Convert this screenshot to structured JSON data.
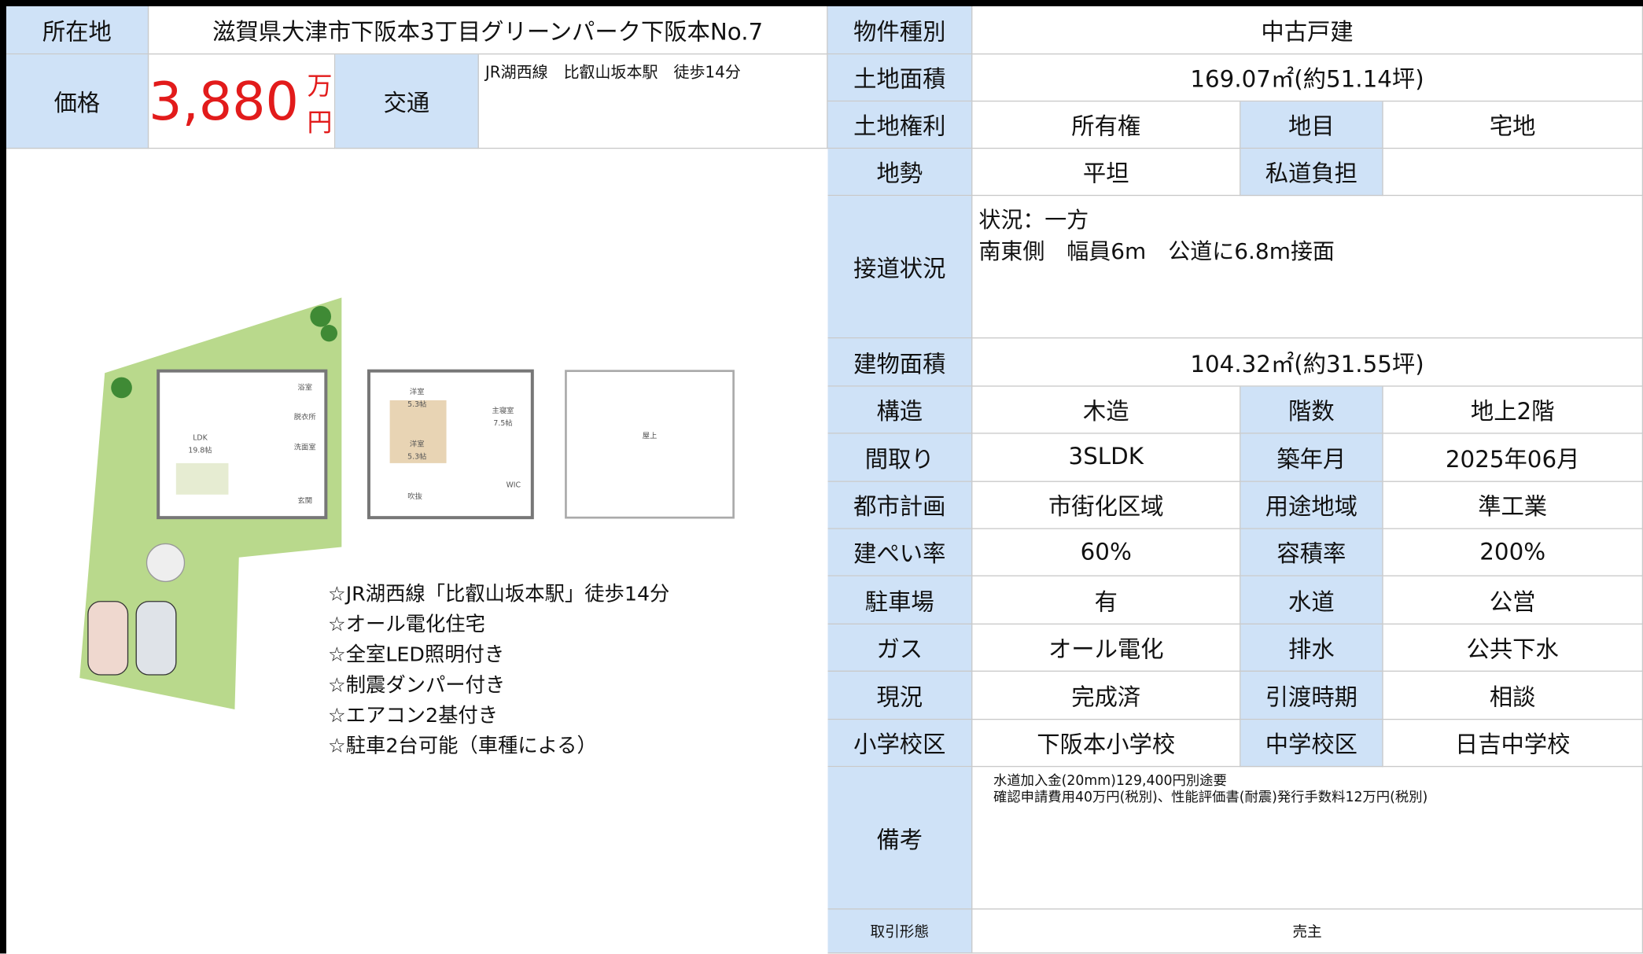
{
  "header": {
    "location_label": "所在地",
    "location": "滋賀県大津市下阪本3丁目グリーンパーク下阪本No.7",
    "price_label": "価格",
    "price": "3,880",
    "price_unit": "万円",
    "access_label": "交通",
    "access": "JR湖西線　比叡山坂本駅　徒歩14分"
  },
  "floor_plan": {
    "labels": [
      "浴室",
      "脱衣所",
      "LDK",
      "19.8帖",
      "洗面室",
      "玄関",
      "洋室",
      "5.3帖",
      "洋室",
      "5.3帖",
      "主寝室",
      "7.5帖",
      "WIC",
      "吹抜",
      "屋上"
    ]
  },
  "features": [
    "☆JR湖西線「比叡山坂本駅」徒歩14分",
    "☆オール電化住宅",
    "☆全室LED照明付き",
    "☆制震ダンパー付き",
    "☆エアコン2基付き",
    "☆駐車2台可能（車種による）"
  ],
  "table": {
    "rows": [
      [
        "物件種別",
        "中古戸建"
      ],
      [
        "土地面積",
        "169.07㎡(約51.14坪)"
      ],
      [
        "土地権利",
        "所有権",
        "地目",
        "宅地"
      ],
      [
        "地勢",
        "平坦",
        "私道負担"
      ],
      [
        "接道状況",
        [
          "状況：一方",
          "南東側　幅員6m　公道に6.8m接面"
        ]
      ],
      [
        "建物面積",
        "104.32㎡(約31.55坪)"
      ],
      [
        "構造",
        "木造",
        "階数",
        "地上2階"
      ],
      [
        "間取り",
        "3SLDK",
        "築年月",
        "2025年06月"
      ],
      [
        "都市計画",
        "市街化区域",
        "用途地域",
        "準工業"
      ],
      [
        "建ぺい率",
        "60%",
        "容積率",
        "200%"
      ],
      [
        "駐車場",
        "有",
        "水道",
        "公営"
      ],
      [
        "ガス",
        "オール電化",
        "排水",
        "公共下水"
      ],
      [
        "現況",
        "完成済",
        "引渡時期",
        "相談"
      ],
      [
        "小学校区",
        "下阪本小学校",
        "中学校区",
        "日吉中学校"
      ],
      [
        "備考",
        [
          "水道加入金(20mm)129,400円別途要",
          "確認申請費用40万円(税別)、性能評価書(耐震)発行手数料12万円(税別)"
        ]
      ],
      [
        "取引形態",
        "売主"
      ]
    ]
  }
}
